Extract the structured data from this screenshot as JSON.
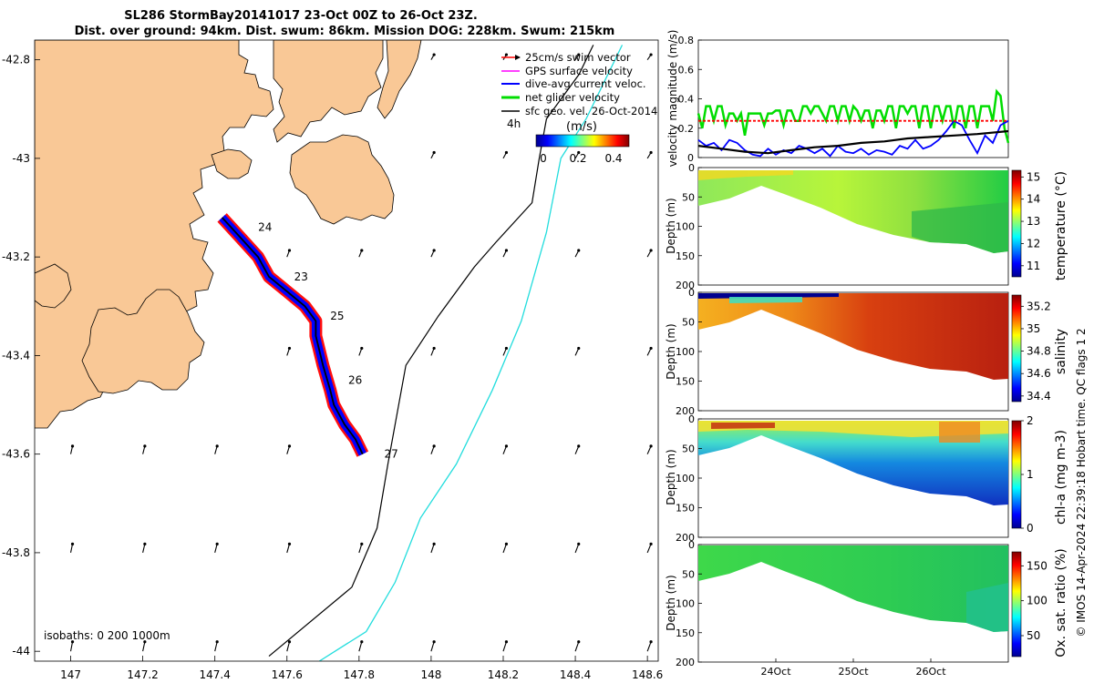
{
  "title": {
    "line1": "SL286 StormBay20141017 23-Oct 00Z to 26-Oct 23Z.",
    "line2": "Dist. over ground: 94km. Dist. swum: 86km. Mission DOG: 228km. Swum: 215km"
  },
  "credit": "© IMOS 14-Apr-2024 22:39:18 Hobart time. QC flags 1  2",
  "colors": {
    "land": "#f9c896",
    "swim": "#ff0000",
    "dive": "#0000ff",
    "net": "#00dd00",
    "iso200": "#000000",
    "iso1000": "#22dddd"
  },
  "chart_data": [
    {
      "type": "map",
      "name": "track-map",
      "xlim": [
        146.9,
        148.63
      ],
      "ylim": [
        -44.02,
        -42.76
      ],
      "xticks": [
        "147",
        "147.2",
        "147.4",
        "147.6",
        "147.8",
        "148",
        "148.2",
        "148.4",
        "148.6"
      ],
      "yticks": [
        "-42.8",
        "-43",
        "-43.2",
        "-43.4",
        "-43.6",
        "-43.8",
        "-44"
      ],
      "legend": {
        "items": [
          "25cm/s swim vector",
          "GPS surface velocity",
          "dive-avg current veloc.",
          "net glider velocity",
          "sfc geo. vel. 26-Oct-2014"
        ],
        "scale_label": "4h",
        "colorbar_unit": "(m/s)",
        "colorbar_ticks": [
          "0",
          "0.2",
          "0.4"
        ]
      },
      "isobath_label": "isobaths: 0   200  1000m",
      "track": [
        [
          147.42,
          -43.12
        ],
        [
          147.47,
          -43.16
        ],
        [
          147.52,
          -43.2
        ],
        [
          147.55,
          -43.24
        ],
        [
          147.6,
          -43.27
        ],
        [
          147.65,
          -43.3
        ],
        [
          147.68,
          -43.33
        ],
        [
          147.68,
          -43.36
        ],
        [
          147.7,
          -43.42
        ],
        [
          147.72,
          -43.47
        ],
        [
          147.73,
          -43.5
        ],
        [
          147.76,
          -43.54
        ],
        [
          147.79,
          -43.57
        ],
        [
          147.81,
          -43.6
        ]
      ],
      "day_labels": [
        {
          "text": "24",
          "lon": 147.52,
          "lat": -43.14
        },
        {
          "text": "23",
          "lon": 147.62,
          "lat": -43.24
        },
        {
          "text": "25",
          "lon": 147.72,
          "lat": -43.32
        },
        {
          "text": "26",
          "lon": 147.77,
          "lat": -43.45
        },
        {
          "text": "27",
          "lon": 147.87,
          "lat": -43.6
        }
      ],
      "isobath_200": [
        [
          147.55,
          -44.01
        ],
        [
          147.78,
          -43.87
        ],
        [
          147.85,
          -43.75
        ],
        [
          147.88,
          -43.62
        ],
        [
          147.93,
          -43.42
        ],
        [
          148.02,
          -43.32
        ],
        [
          148.12,
          -43.22
        ],
        [
          148.18,
          -43.17
        ],
        [
          148.28,
          -43.09
        ],
        [
          148.3,
          -43.0
        ],
        [
          148.32,
          -42.92
        ],
        [
          148.41,
          -42.83
        ],
        [
          148.45,
          -42.77
        ]
      ],
      "isobath_1000": [
        [
          147.69,
          -44.02
        ],
        [
          147.82,
          -43.96
        ],
        [
          147.9,
          -43.86
        ],
        [
          147.97,
          -43.73
        ],
        [
          148.07,
          -43.62
        ],
        [
          148.17,
          -43.47
        ],
        [
          148.25,
          -43.33
        ],
        [
          148.32,
          -43.15
        ],
        [
          148.36,
          -43.0
        ],
        [
          148.43,
          -42.92
        ],
        [
          148.51,
          -42.8
        ],
        [
          148.53,
          -42.77
        ]
      ]
    },
    {
      "type": "line",
      "name": "velocity-magnitude",
      "ylabel": "velocity magnitude (m/s)",
      "ylim": [
        0,
        0.8
      ],
      "yticks": [
        "0",
        "0.2",
        "0.4",
        "0.6",
        "0.8"
      ],
      "xlim": [
        23.0,
        27.0
      ],
      "series": [
        {
          "name": "net glider velocity",
          "color": "#00dd00",
          "x": [
            23.0,
            23.05,
            23.1,
            23.15,
            23.2,
            23.25,
            23.3,
            23.35,
            23.4,
            23.45,
            23.5,
            23.55,
            23.6,
            23.65,
            23.7,
            23.75,
            23.8,
            23.85,
            23.9,
            23.95,
            24.0,
            24.05,
            24.1,
            24.15,
            24.2,
            24.25,
            24.3,
            24.35,
            24.4,
            24.45,
            24.5,
            24.55,
            24.6,
            24.65,
            24.7,
            24.75,
            24.8,
            24.85,
            24.9,
            24.95,
            25.0,
            25.05,
            25.1,
            25.15,
            25.2,
            25.25,
            25.3,
            25.35,
            25.4,
            25.45,
            25.5,
            25.55,
            25.6,
            25.65,
            25.7,
            25.75,
            25.8,
            25.85,
            25.9,
            25.95,
            26.0,
            26.05,
            26.1,
            26.15,
            26.2,
            26.25,
            26.3,
            26.35,
            26.4,
            26.45,
            26.5,
            26.55,
            26.6,
            26.65,
            26.7,
            26.75,
            26.8,
            26.85,
            26.9,
            26.95,
            27.0
          ],
          "y": [
            0.3,
            0.2,
            0.35,
            0.35,
            0.25,
            0.35,
            0.35,
            0.22,
            0.3,
            0.3,
            0.25,
            0.3,
            0.15,
            0.3,
            0.3,
            0.3,
            0.3,
            0.22,
            0.3,
            0.3,
            0.32,
            0.32,
            0.22,
            0.32,
            0.32,
            0.25,
            0.25,
            0.35,
            0.35,
            0.3,
            0.35,
            0.35,
            0.3,
            0.25,
            0.35,
            0.35,
            0.25,
            0.35,
            0.35,
            0.25,
            0.35,
            0.32,
            0.25,
            0.32,
            0.32,
            0.2,
            0.32,
            0.32,
            0.25,
            0.35,
            0.35,
            0.2,
            0.35,
            0.35,
            0.3,
            0.35,
            0.35,
            0.2,
            0.35,
            0.35,
            0.2,
            0.35,
            0.35,
            0.25,
            0.35,
            0.35,
            0.2,
            0.35,
            0.35,
            0.2,
            0.35,
            0.35,
            0.2,
            0.35,
            0.35,
            0.35,
            0.25,
            0.45,
            0.42,
            0.2,
            0.1
          ]
        },
        {
          "name": "dive-avg current veloc.",
          "color": "#0000ff",
          "x": [
            23.0,
            23.1,
            23.2,
            23.3,
            23.4,
            23.5,
            23.6,
            23.7,
            23.8,
            23.9,
            24.0,
            24.1,
            24.2,
            24.3,
            24.4,
            24.5,
            24.6,
            24.7,
            24.8,
            24.9,
            25.0,
            25.1,
            25.2,
            25.3,
            25.4,
            25.5,
            25.6,
            25.7,
            25.8,
            25.9,
            26.0,
            26.1,
            26.2,
            26.3,
            26.4,
            26.5,
            26.6,
            26.7,
            26.8,
            26.9,
            27.0
          ],
          "y": [
            0.12,
            0.08,
            0.1,
            0.05,
            0.12,
            0.1,
            0.05,
            0.02,
            0.01,
            0.06,
            0.02,
            0.05,
            0.03,
            0.08,
            0.06,
            0.03,
            0.06,
            0.01,
            0.08,
            0.04,
            0.03,
            0.06,
            0.02,
            0.05,
            0.04,
            0.02,
            0.08,
            0.06,
            0.12,
            0.06,
            0.08,
            0.12,
            0.18,
            0.25,
            0.22,
            0.12,
            0.03,
            0.15,
            0.1,
            0.22,
            0.25
          ]
        },
        {
          "name": "swim vector",
          "color": "#ff0000",
          "x": [
            23.0,
            27.0
          ],
          "y": [
            0.25,
            0.25
          ],
          "dashed": true
        },
        {
          "name": "sfc geo. vel.",
          "color": "#000000",
          "x": [
            23.0,
            23.3,
            23.6,
            23.9,
            24.2,
            24.5,
            24.8,
            25.1,
            25.4,
            25.7,
            26.0,
            26.3,
            26.6,
            27.0
          ],
          "y": [
            0.08,
            0.06,
            0.04,
            0.03,
            0.05,
            0.07,
            0.08,
            0.1,
            0.11,
            0.13,
            0.14,
            0.15,
            0.16,
            0.18
          ]
        }
      ]
    },
    {
      "type": "heatmap",
      "name": "temperature-section",
      "ylabel": "Depth (m)",
      "ylim": [
        200,
        0
      ],
      "yticks": [
        "0",
        "50",
        "100",
        "150",
        "200"
      ],
      "colorbar_label": "temperature (°C)",
      "colorbar_ticks": [
        "11",
        "12",
        "13",
        "14",
        "15"
      ],
      "crange": [
        10.5,
        15.3
      ]
    },
    {
      "type": "heatmap",
      "name": "salinity-section",
      "ylabel": "Depth (m)",
      "ylim": [
        200,
        0
      ],
      "yticks": [
        "0",
        "50",
        "100",
        "150",
        "200"
      ],
      "colorbar_label": "salinity",
      "colorbar_ticks": [
        "34.4",
        "34.6",
        "34.8",
        "35",
        "35.2"
      ],
      "crange": [
        34.35,
        35.3
      ]
    },
    {
      "type": "heatmap",
      "name": "chl-section",
      "ylabel": "Depth (m)",
      "ylim": [
        200,
        0
      ],
      "yticks": [
        "0",
        "50",
        "100",
        "150",
        "200"
      ],
      "colorbar_label": "chl-a (mg m-3)",
      "colorbar_ticks": [
        "0",
        "1",
        "2"
      ],
      "crange": [
        0,
        2
      ]
    },
    {
      "type": "heatmap",
      "name": "oxygen-section",
      "ylabel": "Depth (m)",
      "ylim": [
        200,
        0
      ],
      "yticks": [
        "0",
        "50",
        "100",
        "150",
        "200"
      ],
      "colorbar_label": "Ox. sat. ratio (%)",
      "colorbar_ticks": [
        "50",
        "100",
        "150"
      ],
      "crange": [
        20,
        170
      ],
      "xticks": [
        "24Oct",
        "25Oct",
        "26Oct"
      ]
    }
  ]
}
